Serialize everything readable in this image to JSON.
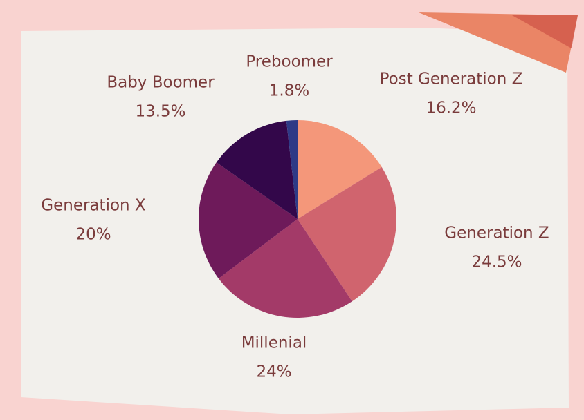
{
  "chart_data": {
    "type": "pie",
    "categories": [
      "Post Generation Z",
      "Generation Z",
      "Millenial",
      "Generation X",
      "Baby Boomer",
      "Preboomer"
    ],
    "values": [
      16.2,
      24.5,
      24,
      20,
      13.5,
      1.8
    ],
    "value_labels": [
      "16.2%",
      "24.5%",
      "24%",
      "20%",
      "13.5%",
      "1.8%"
    ],
    "colors": [
      "#f4977a",
      "#d0646e",
      "#a33a68",
      "#6e1a5a",
      "#33074a",
      "#2e3a86"
    ]
  }
}
